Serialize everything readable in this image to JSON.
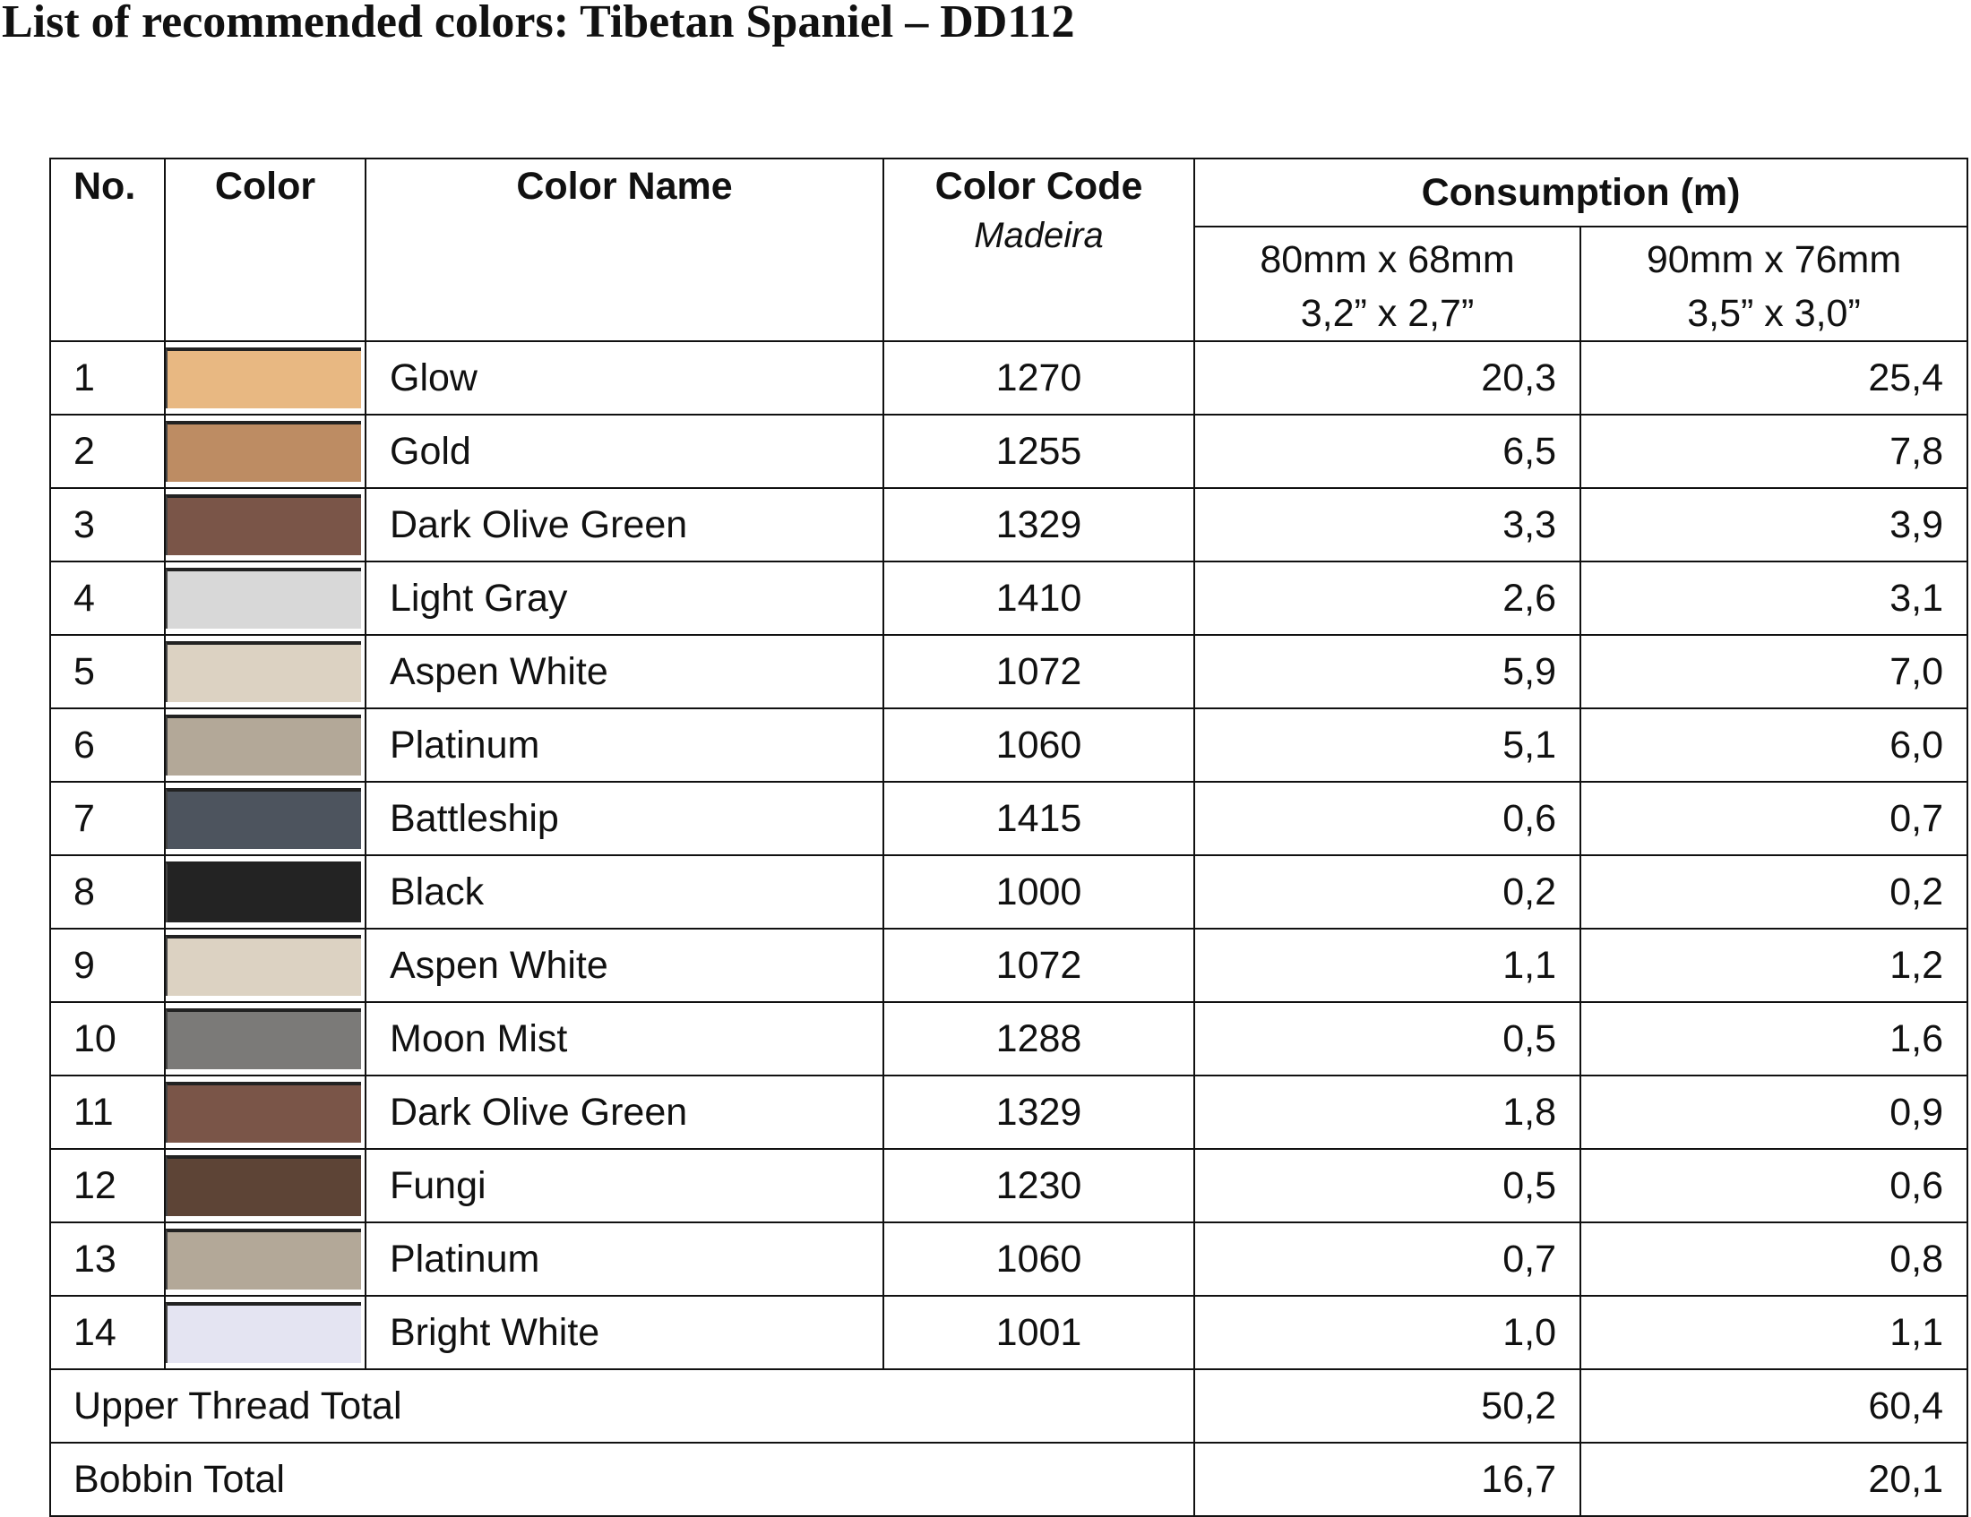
{
  "title": "List of recommended colors: Tibetan Spaniel – DD112",
  "headers": {
    "no": "No.",
    "color": "Color",
    "color_name": "Color Name",
    "color_code": "Color Code",
    "brand": "Madeira",
    "consumption": "Consumption (m)",
    "size1_mm": "80mm x 68mm",
    "size1_in": "3,2” x 2,7”",
    "size2_mm": "90mm x 76mm",
    "size2_in": "3,5” x 3,0”"
  },
  "rows": [
    {
      "no": "1",
      "swatch": "#e8b882",
      "name": "Glow",
      "code": "1270",
      "c1": "20,3",
      "c2": "25,4"
    },
    {
      "no": "2",
      "swatch": "#bd8c63",
      "name": "Gold",
      "code": "1255",
      "c1": "6,5",
      "c2": "7,8"
    },
    {
      "no": "3",
      "swatch": "#7a5548",
      "name": "Dark Olive Green",
      "code": "1329",
      "c1": "3,3",
      "c2": "3,9"
    },
    {
      "no": "4",
      "swatch": "#d8d8d8",
      "name": "Light Gray",
      "code": "1410",
      "c1": "2,6",
      "c2": "3,1"
    },
    {
      "no": "5",
      "swatch": "#dcd2c2",
      "name": "Aspen White",
      "code": "1072",
      "c1": "5,9",
      "c2": "7,0"
    },
    {
      "no": "6",
      "swatch": "#b3a898",
      "name": "Platinum",
      "code": "1060",
      "c1": "5,1",
      "c2": "6,0"
    },
    {
      "no": "7",
      "swatch": "#4d545e",
      "name": "Battleship",
      "code": "1415",
      "c1": "0,6",
      "c2": "0,7"
    },
    {
      "no": "8",
      "swatch": "#232323",
      "name": "Black",
      "code": "1000",
      "c1": "0,2",
      "c2": "0,2"
    },
    {
      "no": "9",
      "swatch": "#dcd2c2",
      "name": "Aspen White",
      "code": "1072",
      "c1": "1,1",
      "c2": "1,2"
    },
    {
      "no": "10",
      "swatch": "#7b7a78",
      "name": "Moon Mist",
      "code": "1288",
      "c1": "0,5",
      "c2": "1,6"
    },
    {
      "no": "11",
      "swatch": "#7a5548",
      "name": "Dark Olive Green",
      "code": "1329",
      "c1": "1,8",
      "c2": "0,9"
    },
    {
      "no": "12",
      "swatch": "#5d4436",
      "name": "Fungi",
      "code": "1230",
      "c1": "0,5",
      "c2": "0,6"
    },
    {
      "no": "13",
      "swatch": "#b3a898",
      "name": "Platinum",
      "code": "1060",
      "c1": "0,7",
      "c2": "0,8"
    },
    {
      "no": "14",
      "swatch": "#e4e4f2",
      "name": "Bright White",
      "code": "1001",
      "c1": "1,0",
      "c2": "1,1"
    }
  ],
  "totals": [
    {
      "label": "Upper Thread Total",
      "c1": "50,2",
      "c2": "60,4"
    },
    {
      "label": "Bobbin Total",
      "c1": "16,7",
      "c2": "20,1"
    }
  ]
}
